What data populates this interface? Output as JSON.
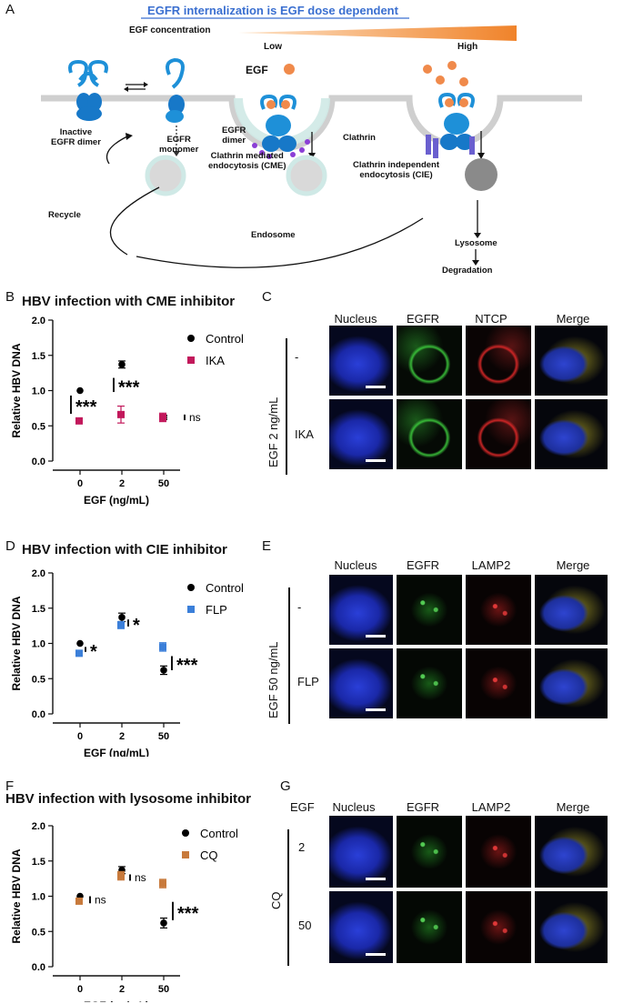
{
  "panelA": {
    "letter": "A",
    "banner": "EGFR internalization is EGF dose dependent",
    "egf_concentration": "EGF concentration",
    "low": "Low",
    "high": "High",
    "egf": "EGF",
    "inactive_dimer": [
      "Inactive",
      "EGFR dimer"
    ],
    "monomer": [
      "EGFR",
      "monomer"
    ],
    "egfr_dimer": [
      "EGFR",
      "dimer"
    ],
    "clathrin": "Clathrin",
    "cme": [
      "Clathrin mediated",
      "endocytosis (CME)"
    ],
    "cie": [
      "Clathrin independent",
      "endocytosis (CIE)"
    ],
    "recycle": "Recycle",
    "endosome": "Endosome",
    "lysosome": "Lysosome",
    "degradation": "Degradation",
    "colors": {
      "banner_line": "#3a6fd0",
      "receptor": "#1e90d8",
      "egf_ball": "#f08a4b",
      "clathrin": "#cfe9e6"
    }
  },
  "panelB": {
    "letter": "B",
    "title": "HBV infection with CME inhibitor",
    "chart_data": {
      "type": "scatter",
      "categories": [
        "0",
        "2",
        "50"
      ],
      "xlabel": "EGF (ng/mL)",
      "ylabel": "Relative HBV DNA",
      "ylim": [
        0.0,
        2.0
      ],
      "yticks": [
        "0.0",
        "0.5",
        "1.0",
        "1.5",
        "2.0"
      ],
      "series": [
        {
          "name": "Control",
          "marker": "circle",
          "color": "#000000",
          "values": [
            1.0,
            1.37,
            0.62
          ],
          "err": [
            0.0,
            0.05,
            0.03
          ]
        },
        {
          "name": "IKA",
          "marker": "square",
          "color": "#c2185b",
          "values": [
            0.57,
            0.66,
            0.62
          ],
          "err": [
            0.03,
            0.12,
            0.06
          ]
        }
      ],
      "significance": [
        "***",
        "***",
        "ns"
      ],
      "legend": "top-right"
    }
  },
  "panelC": {
    "letter": "C",
    "columns": [
      "Nucleus",
      "EGFR",
      "NTCP",
      "Merge"
    ],
    "group_label": "EGF 2 ng/mL",
    "rows": [
      "-",
      "IKA"
    ]
  },
  "panelD": {
    "letter": "D",
    "title": "HBV infection with CIE inhibitor",
    "chart_data": {
      "type": "scatter",
      "categories": [
        "0",
        "2",
        "50"
      ],
      "xlabel": "EGF (ng/mL)",
      "ylabel": "Relative HBV DNA",
      "ylim": [
        0.0,
        2.0
      ],
      "yticks": [
        "0.0",
        "0.5",
        "1.0",
        "1.5",
        "2.0"
      ],
      "series": [
        {
          "name": "Control",
          "marker": "circle",
          "color": "#000000",
          "values": [
            1.0,
            1.37,
            0.62
          ],
          "err": [
            0.0,
            0.06,
            0.06
          ]
        },
        {
          "name": "FLP",
          "marker": "square",
          "color": "#3b7fd9",
          "values": [
            0.86,
            1.26,
            0.95
          ],
          "err": [
            0.03,
            0.05,
            0.06
          ]
        }
      ],
      "significance": [
        "*",
        "*",
        "***"
      ],
      "legend": "top-right"
    }
  },
  "panelE": {
    "letter": "E",
    "columns": [
      "Nucleus",
      "EGFR",
      "LAMP2",
      "Merge"
    ],
    "group_label": "EGF 50 ng/mL",
    "rows": [
      "-",
      "FLP"
    ]
  },
  "panelF": {
    "letter": "F",
    "title": "HBV infection with lysosome inhibitor",
    "chart_data": {
      "type": "scatter",
      "categories": [
        "0",
        "2",
        "50"
      ],
      "xlabel": "EGF (ng/mL)",
      "ylabel": "Relative HBV DNA",
      "ylim": [
        0.0,
        2.0
      ],
      "yticks": [
        "0.0",
        "0.5",
        "1.0",
        "1.5",
        "2.0"
      ],
      "series": [
        {
          "name": "Control",
          "marker": "circle",
          "color": "#000000",
          "values": [
            1.0,
            1.37,
            0.62
          ],
          "err": [
            0.0,
            0.05,
            0.07
          ]
        },
        {
          "name": "CQ",
          "marker": "square",
          "color": "#c87a3c",
          "values": [
            0.93,
            1.29,
            1.18
          ],
          "err": [
            0.03,
            0.06,
            0.06
          ]
        }
      ],
      "significance": [
        "ns",
        "ns",
        "***"
      ],
      "legend": "top-right"
    }
  },
  "panelG": {
    "letter": "G",
    "corner": "EGF",
    "columns": [
      "Nucleus",
      "EGFR",
      "LAMP2",
      "Merge"
    ],
    "group_label": "CQ",
    "rows": [
      "2",
      "50"
    ]
  }
}
